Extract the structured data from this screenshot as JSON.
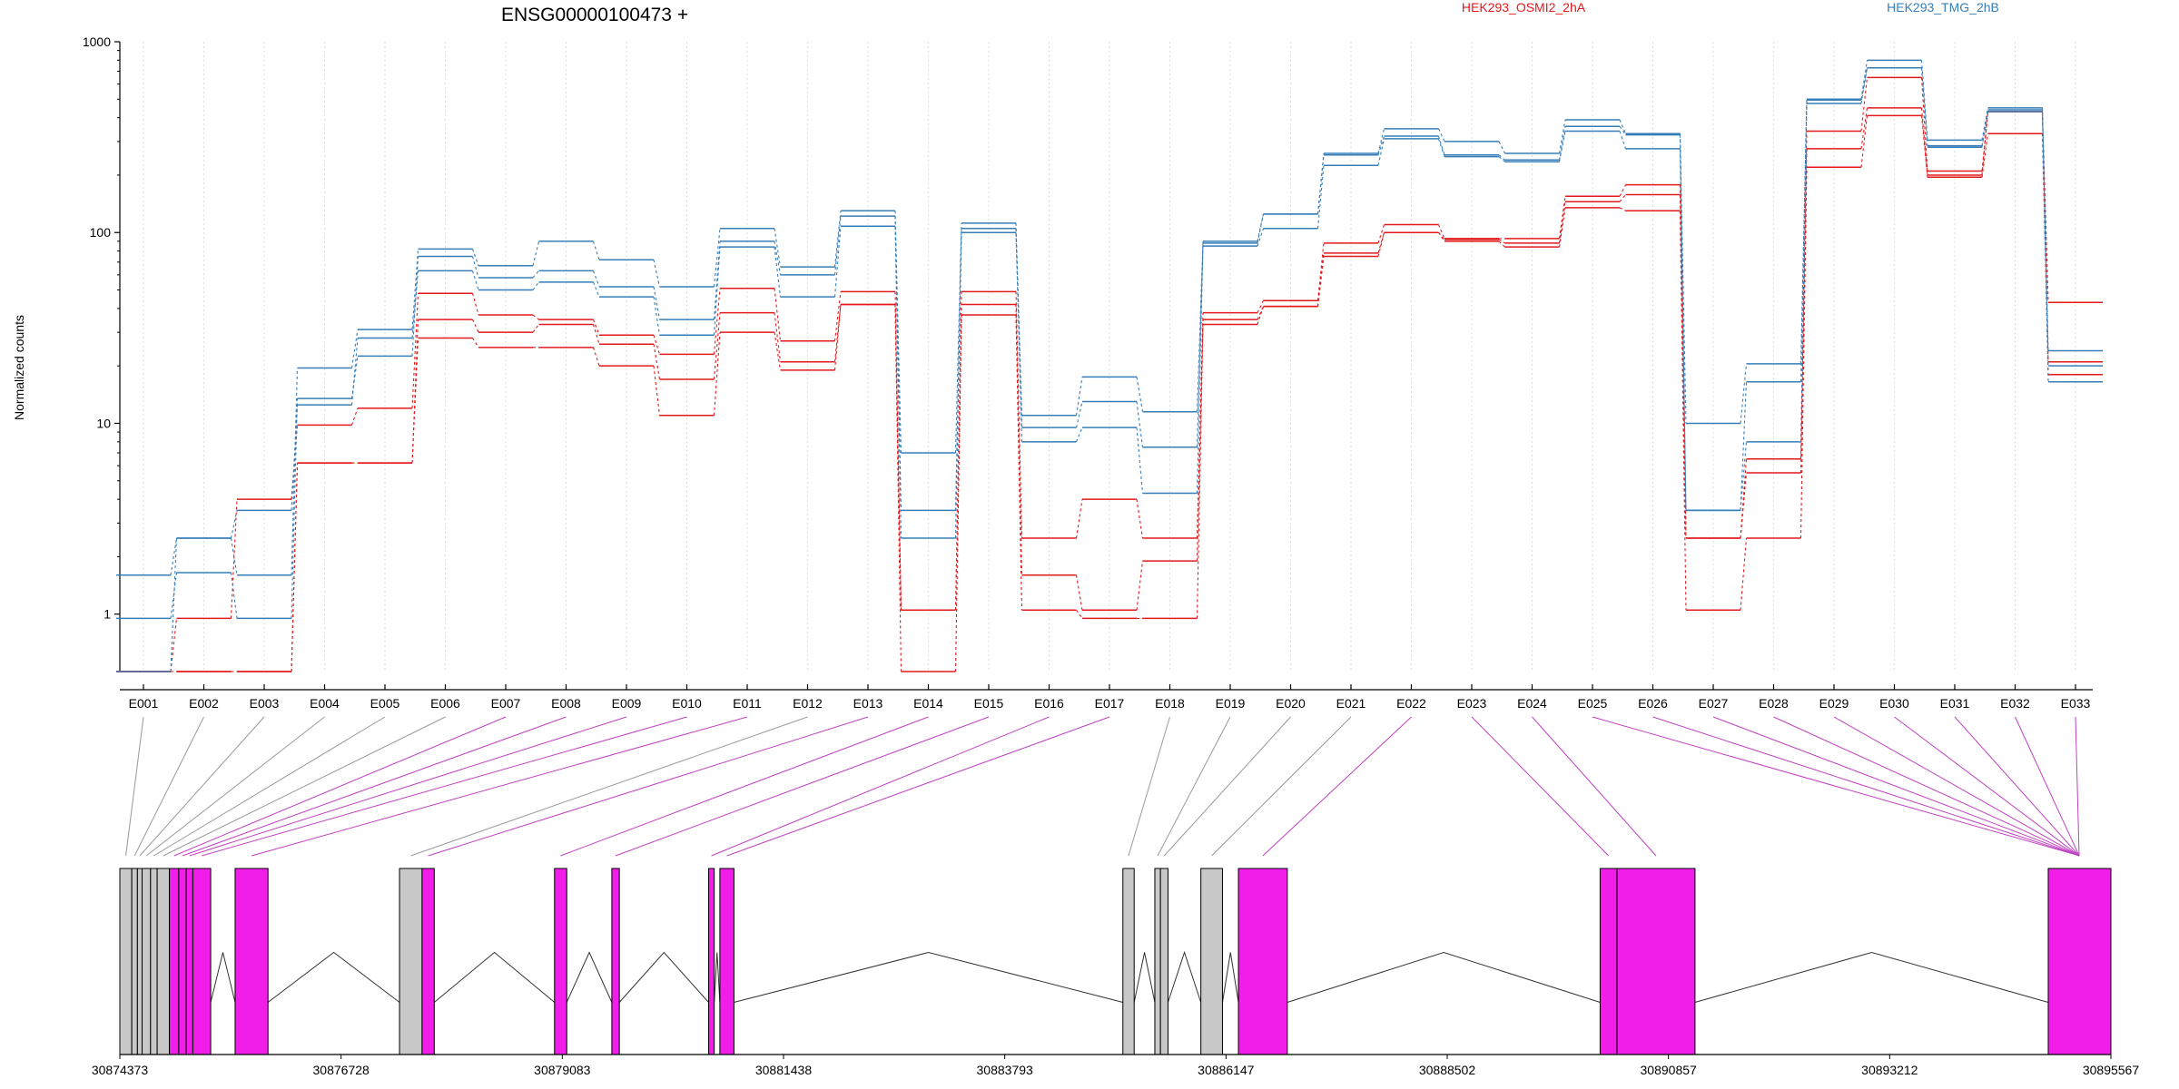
{
  "chart_data": {
    "type": "line",
    "title": "ENSG00000100473 +",
    "ylabel": "Normalized counts",
    "y_scale": "log",
    "ylim": [
      0.5,
      1000
    ],
    "y_ticks": [
      1,
      10,
      100,
      1000
    ],
    "y_tick_labels": [
      "1",
      "10",
      "100",
      "1000"
    ],
    "grid": "vertical-dotted",
    "legend": "top-right",
    "colors": {
      "red": "#e31a1c",
      "blue": "#377eb8",
      "exon_magenta": "#f01ee8",
      "exon_gray": "#c8c8c8",
      "connector_gray": "#999999",
      "connector_magenta": "#c040c0"
    },
    "categories": [
      "E001",
      "E002",
      "E003",
      "E004",
      "E005",
      "E006",
      "E007",
      "E008",
      "E009",
      "E010",
      "E011",
      "E012",
      "E013",
      "E014",
      "E015",
      "E016",
      "E017",
      "E018",
      "E019",
      "E020",
      "E021",
      "E022",
      "E023",
      "E024",
      "E025",
      "E026",
      "E027",
      "E028",
      "E029",
      "E030",
      "E031",
      "E032",
      "E033"
    ],
    "series": [
      {
        "name": "HEK293_OSMI2_2hA",
        "color": "#e31a1c",
        "values": [
          0.5,
          0.95,
          4.0,
          9.8,
          12.0,
          48,
          37,
          35,
          29,
          23,
          51,
          27,
          49,
          1.05,
          49,
          2.5,
          4.0,
          2.5,
          38,
          44,
          88,
          110,
          93,
          93,
          155,
          178,
          2.5,
          6.5,
          340,
          650,
          210,
          430,
          43
        ]
      },
      {
        "name": "HEK293_OSMI2_2hA",
        "color": "#e31a1c",
        "values": [
          0.5,
          0.5,
          0.5,
          6.2,
          6.2,
          35,
          30,
          33,
          26,
          17,
          38,
          21,
          42,
          1.05,
          42,
          1.6,
          1.05,
          1.9,
          35,
          41,
          78,
          100,
          92,
          88,
          145,
          158,
          2.5,
          5.5,
          275,
          450,
          200,
          430,
          21
        ]
      },
      {
        "name": "HEK293_OSMI2_2hA",
        "color": "#e31a1c",
        "values": [
          0.5,
          0.5,
          0.5,
          6.2,
          6.2,
          28,
          25,
          25,
          20,
          11,
          30,
          19,
          42,
          0.5,
          37,
          1.05,
          0.95,
          0.95,
          33,
          41,
          75,
          100,
          90,
          84,
          135,
          130,
          1.05,
          2.5,
          220,
          410,
          195,
          330,
          18
        ]
      },
      {
        "name": "HEK293_TMG_2hB",
        "color": "#377eb8",
        "values": [
          1.6,
          2.5,
          1.6,
          19.5,
          31,
          82,
          67,
          90,
          72,
          52,
          105,
          66,
          130,
          7.0,
          112,
          11,
          17.5,
          11.5,
          90,
          125,
          260,
          350,
          300,
          260,
          390,
          330,
          10,
          20.5,
          500,
          800,
          305,
          450,
          24
        ]
      },
      {
        "name": "HEK293_TMG_2hB",
        "color": "#377eb8",
        "values": [
          0.95,
          1.65,
          0.95,
          13.5,
          22.5,
          75,
          58,
          63,
          52,
          35,
          90,
          60,
          122,
          3.5,
          105,
          9.5,
          13,
          7.5,
          88,
          125,
          255,
          320,
          255,
          240,
          360,
          325,
          3.5,
          16.5,
          495,
          730,
          285,
          440,
          20
        ]
      },
      {
        "name": "HEK293_TMG_2hB",
        "color": "#377eb8",
        "values": [
          0.5,
          2.5,
          3.5,
          12.5,
          28,
          63,
          50,
          55,
          46,
          29,
          84,
          46,
          108,
          2.5,
          100,
          8.0,
          9.5,
          4.3,
          85,
          105,
          225,
          310,
          250,
          235,
          340,
          275,
          3.5,
          8.0,
          475,
          730,
          280,
          430,
          16.5
        ]
      }
    ],
    "legend_entries": [
      "HEK293_OSMI2_2hA",
      "HEK293_TMG_2hB"
    ],
    "gene_model": {
      "axis_ticks": [
        "30874373",
        "30876728",
        "30879083",
        "30881438",
        "30883793",
        "30886147",
        "30888502",
        "30890857",
        "30893212",
        "30895567"
      ],
      "axis_range": [
        30874373,
        30895567
      ],
      "exons": [
        {
          "label": "E001",
          "start": 30874373,
          "end": 30874500,
          "color": "#c8c8c8"
        },
        {
          "label": "E002",
          "start": 30874500,
          "end": 30874560,
          "color": "#c8c8c8"
        },
        {
          "label": "E003",
          "start": 30874560,
          "end": 30874610,
          "color": "#c8c8c8"
        },
        {
          "label": "E004",
          "start": 30874610,
          "end": 30874700,
          "color": "#c8c8c8"
        },
        {
          "label": "E005",
          "start": 30874700,
          "end": 30874770,
          "color": "#c8c8c8"
        },
        {
          "label": "E006",
          "start": 30874770,
          "end": 30874900,
          "color": "#c8c8c8"
        },
        {
          "label": "E007",
          "start": 30874900,
          "end": 30875000,
          "color": "#f01ee8"
        },
        {
          "label": "E008",
          "start": 30875000,
          "end": 30875080,
          "color": "#f01ee8"
        },
        {
          "label": "E009",
          "start": 30875080,
          "end": 30875150,
          "color": "#f01ee8"
        },
        {
          "label": "E010",
          "start": 30875150,
          "end": 30875340,
          "color": "#f01ee8"
        },
        {
          "label": "E011",
          "start": 30875600,
          "end": 30875950,
          "color": "#f01ee8"
        },
        {
          "label": "E012",
          "start": 30877350,
          "end": 30877590,
          "color": "#c8c8c8"
        },
        {
          "label": "E013",
          "start": 30877590,
          "end": 30877720,
          "color": "#f01ee8"
        },
        {
          "label": "E014",
          "start": 30879000,
          "end": 30879130,
          "color": "#f01ee8"
        },
        {
          "label": "E015",
          "start": 30879610,
          "end": 30879690,
          "color": "#f01ee8"
        },
        {
          "label": "E016",
          "start": 30880640,
          "end": 30880700,
          "color": "#f01ee8"
        },
        {
          "label": "E017",
          "start": 30880760,
          "end": 30880910,
          "color": "#f01ee8"
        },
        {
          "label": "E018",
          "start": 30885050,
          "end": 30885170,
          "color": "#c8c8c8"
        },
        {
          "label": "E019",
          "start": 30885390,
          "end": 30885450,
          "color": "#c8c8c8"
        },
        {
          "label": "E020",
          "start": 30885450,
          "end": 30885530,
          "color": "#c8c8c8"
        },
        {
          "label": "E021",
          "start": 30885880,
          "end": 30886110,
          "color": "#c8c8c8"
        },
        {
          "label": "E022",
          "start": 30886280,
          "end": 30886800,
          "color": "#f01ee8"
        },
        {
          "label": "E023",
          "start": 30890130,
          "end": 30890310,
          "color": "#f01ee8"
        },
        {
          "label": "E024",
          "start": 30890310,
          "end": 30891140,
          "color": "#f01ee8"
        },
        {
          "label": "E025",
          "start": 30894900,
          "end": 30895567,
          "color": "#f01ee8"
        }
      ]
    }
  }
}
